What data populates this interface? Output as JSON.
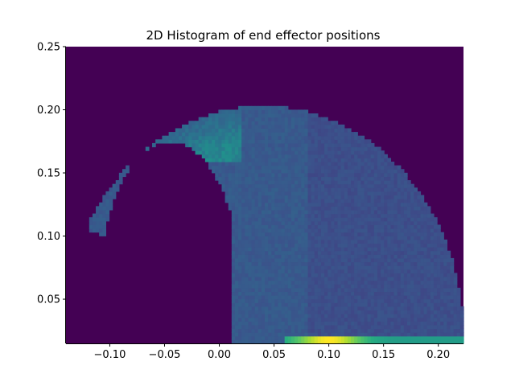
{
  "chart_data": {
    "type": "heatmap",
    "title": "2D Histogram of end effector positions",
    "xlabel": "",
    "ylabel": "",
    "xlim": [
      -0.14,
      0.223
    ],
    "ylim": [
      0.015,
      0.25
    ],
    "xticks": [
      -0.1,
      -0.05,
      0.0,
      0.05,
      0.1,
      0.15,
      0.2
    ],
    "xtick_labels": [
      "−0.10",
      "−0.05",
      "0.00",
      "0.05",
      "0.10",
      "0.15",
      "0.20"
    ],
    "yticks": [
      0.05,
      0.1,
      0.15,
      0.2,
      0.25
    ],
    "ytick_labels": [
      "0.05",
      "0.10",
      "0.15",
      "0.20",
      "0.25"
    ],
    "colormap": "viridis",
    "grid": false,
    "bins": [
      120,
      80
    ],
    "density_regions": {
      "outer_arc_center": [
        0.04,
        0.02
      ],
      "outer_arc_radius": 0.183,
      "empty_inner_lobe": {
        "x_range": [
          -0.12,
          0.015
        ],
        "y_range": [
          0.015,
          0.175
        ]
      },
      "dense_upper_left_band": {
        "x_range": [
          -0.11,
          0.0
        ],
        "y_range": [
          0.17,
          0.24
        ],
        "relative_density": 0.45
      },
      "bottom_hot_strip": {
        "x_range": [
          0.06,
          0.22
        ],
        "y_range": [
          0.015,
          0.022
        ],
        "peak_x": 0.1,
        "relative_density": 1.0
      },
      "main_body_relative_density": 0.28
    }
  }
}
